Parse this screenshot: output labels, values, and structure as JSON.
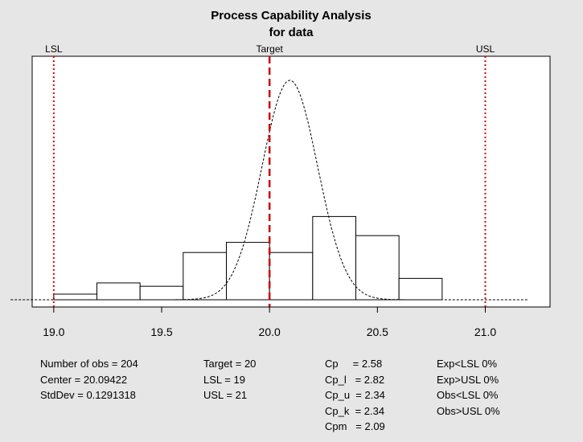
{
  "chart_data": {
    "type": "bar",
    "title": "Process Capability Analysis",
    "subtitle": "for data",
    "xlim": [
      18.9,
      21.3
    ],
    "ylim": [
      0,
      1
    ],
    "x_ticks": [
      "19.0",
      "19.5",
      "20.0",
      "20.5",
      "21.0"
    ],
    "bins": [
      {
        "x0": 19.0,
        "x1": 19.2,
        "height": 0.025
      },
      {
        "x0": 19.2,
        "x1": 19.4,
        "height": 0.075
      },
      {
        "x0": 19.4,
        "x1": 19.6,
        "height": 0.06
      },
      {
        "x0": 19.6,
        "x1": 19.8,
        "height": 0.21
      },
      {
        "x0": 19.8,
        "x1": 20.0,
        "height": 0.255
      },
      {
        "x0": 20.0,
        "x1": 20.2,
        "height": 0.21
      },
      {
        "x0": 20.2,
        "x1": 20.4,
        "height": 0.37
      },
      {
        "x0": 20.4,
        "x1": 20.6,
        "height": 0.285
      },
      {
        "x0": 20.6,
        "x1": 20.8,
        "height": 0.095
      }
    ],
    "density": {
      "mean": 20.09422,
      "sd": 0.1291318,
      "peak": 0.975,
      "x_from": 18.8,
      "x_to": 21.2
    },
    "spec_lines": [
      {
        "label": "LSL",
        "value": 19,
        "style": "dotted",
        "color": "#dd0000"
      },
      {
        "label": "Target",
        "value": 20,
        "style": "dashed",
        "color": "#cc0000"
      },
      {
        "label": "USL",
        "value": 21,
        "style": "dotted",
        "color": "#dd0000"
      }
    ]
  },
  "stats": {
    "col1": [
      "Number of obs = 204",
      "Center = 20.09422",
      "StdDev = 0.1291318"
    ],
    "col2": [
      "Target = 20",
      "LSL = 19",
      "USL = 21"
    ],
    "col3": [
      "Cp     = 2.58",
      "Cp_l   = 2.82",
      "Cp_u  = 2.34",
      "Cp_k  = 2.34",
      "Cpm   = 2.09"
    ],
    "col4": [
      "Exp<LSL 0%",
      "Exp>USL 0%",
      "Obs<LSL 0%",
      "Obs>USL 0%"
    ]
  }
}
